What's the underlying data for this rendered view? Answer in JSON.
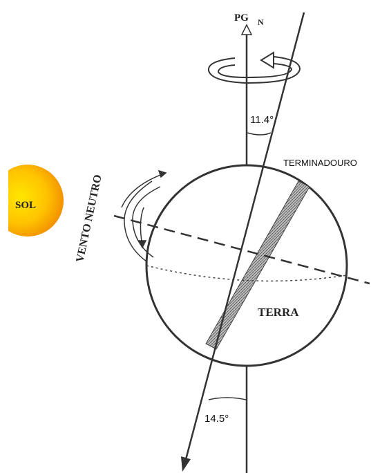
{
  "labels": {
    "pole": "PG",
    "north": "N",
    "top_angle": "11.4°",
    "terminator": "TERMINADOURO",
    "sun": "SOL",
    "wind": "VENTO NEUTRO",
    "earth": "TERRA",
    "bottom_angle": "14.5°"
  }
}
